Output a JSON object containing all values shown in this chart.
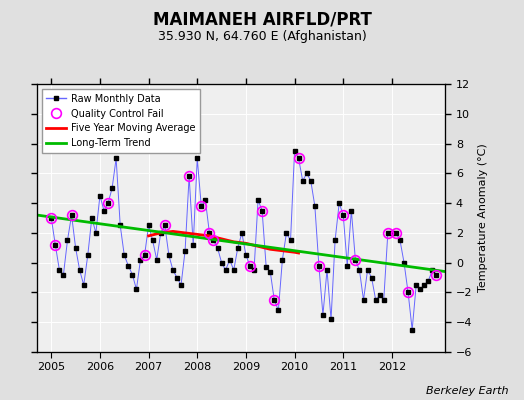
{
  "title": "MAIMANEH AIRFLD/PRT",
  "subtitle": "35.930 N, 64.760 E (Afghanistan)",
  "ylabel": "Temperature Anomaly (°C)",
  "credit": "Berkeley Earth",
  "ylim": [
    -6,
    12
  ],
  "yticks": [
    -6,
    -4,
    -2,
    0,
    2,
    4,
    6,
    8,
    10,
    12
  ],
  "xlim": [
    2004.7,
    2013.1
  ],
  "xticks": [
    2005,
    2006,
    2007,
    2008,
    2009,
    2010,
    2011,
    2012
  ],
  "background_color": "#e0e0e0",
  "plot_bg_color": "#efefef",
  "raw_x": [
    2005.0,
    2005.083,
    2005.167,
    2005.25,
    2005.333,
    2005.417,
    2005.5,
    2005.583,
    2005.667,
    2005.75,
    2005.833,
    2005.917,
    2006.0,
    2006.083,
    2006.167,
    2006.25,
    2006.333,
    2006.417,
    2006.5,
    2006.583,
    2006.667,
    2006.75,
    2006.833,
    2006.917,
    2007.0,
    2007.083,
    2007.167,
    2007.25,
    2007.333,
    2007.417,
    2007.5,
    2007.583,
    2007.667,
    2007.75,
    2007.833,
    2007.917,
    2008.0,
    2008.083,
    2008.167,
    2008.25,
    2008.333,
    2008.417,
    2008.5,
    2008.583,
    2008.667,
    2008.75,
    2008.833,
    2008.917,
    2009.0,
    2009.083,
    2009.167,
    2009.25,
    2009.333,
    2009.417,
    2009.5,
    2009.583,
    2009.667,
    2009.75,
    2009.833,
    2009.917,
    2010.0,
    2010.083,
    2010.167,
    2010.25,
    2010.333,
    2010.417,
    2010.5,
    2010.583,
    2010.667,
    2010.75,
    2010.833,
    2010.917,
    2011.0,
    2011.083,
    2011.167,
    2011.25,
    2011.333,
    2011.417,
    2011.5,
    2011.583,
    2011.667,
    2011.75,
    2011.833,
    2011.917,
    2012.0,
    2012.083,
    2012.167,
    2012.25,
    2012.333,
    2012.417,
    2012.5,
    2012.583,
    2012.667,
    2012.75,
    2012.833,
    2012.917
  ],
  "raw_y": [
    3.0,
    1.2,
    -0.5,
    -0.8,
    1.5,
    3.2,
    1.0,
    -0.5,
    -1.5,
    0.5,
    3.0,
    2.0,
    4.5,
    3.5,
    4.0,
    5.0,
    7.0,
    2.5,
    0.5,
    -0.2,
    -0.8,
    -1.8,
    0.2,
    0.5,
    2.5,
    1.5,
    0.2,
    2.0,
    2.5,
    0.5,
    -0.5,
    -1.0,
    -1.5,
    0.8,
    5.8,
    1.2,
    7.0,
    3.8,
    4.2,
    2.0,
    1.5,
    1.0,
    0.0,
    -0.5,
    0.2,
    -0.5,
    1.0,
    2.0,
    0.5,
    -0.2,
    -0.5,
    4.2,
    3.5,
    -0.3,
    -0.6,
    -2.5,
    -3.2,
    0.2,
    2.0,
    1.5,
    7.5,
    7.0,
    5.5,
    6.0,
    5.5,
    3.8,
    -0.2,
    -3.5,
    -0.5,
    -3.8,
    1.5,
    4.0,
    3.2,
    -0.2,
    3.5,
    0.2,
    -0.5,
    -2.5,
    -0.5,
    -1.0,
    -2.5,
    -2.2,
    -2.5,
    2.0,
    2.0,
    2.0,
    1.5,
    0.0,
    -2.0,
    -4.5,
    -1.5,
    -1.8,
    -1.5,
    -1.2,
    -0.5,
    -0.8
  ],
  "qc_fail_x": [
    2005.0,
    2005.083,
    2005.417,
    2006.167,
    2006.917,
    2007.333,
    2007.833,
    2008.083,
    2008.25,
    2008.333,
    2009.083,
    2009.333,
    2009.583,
    2010.083,
    2010.5,
    2011.0,
    2011.25,
    2011.917,
    2012.083,
    2012.333,
    2012.917
  ],
  "qc_fail_y": [
    3.0,
    1.2,
    3.2,
    4.0,
    0.5,
    2.5,
    5.8,
    3.8,
    2.0,
    1.5,
    -0.2,
    3.5,
    -2.5,
    7.0,
    -0.2,
    3.2,
    0.2,
    2.0,
    2.0,
    -2.0,
    -0.8
  ],
  "moving_avg_x": [
    2007.0,
    2007.25,
    2007.5,
    2007.75,
    2008.0,
    2008.25,
    2008.5,
    2008.75,
    2009.0,
    2009.25,
    2009.5,
    2009.75,
    2010.0,
    2010.083
  ],
  "moving_avg_y": [
    1.8,
    2.0,
    2.1,
    2.0,
    1.9,
    1.8,
    1.6,
    1.4,
    1.3,
    1.1,
    0.9,
    0.8,
    0.7,
    0.65
  ],
  "trend_x": [
    2004.7,
    2013.1
  ],
  "trend_y": [
    3.2,
    -0.6
  ],
  "line_color": "#6666ff",
  "marker_color": "#000000",
  "qc_color": "#ff00ff",
  "moving_avg_color": "#ff0000",
  "trend_color": "#00bb00",
  "title_fontsize": 12,
  "subtitle_fontsize": 9,
  "legend_fontsize": 7,
  "tick_labelsize": 8,
  "credit_fontsize": 8
}
